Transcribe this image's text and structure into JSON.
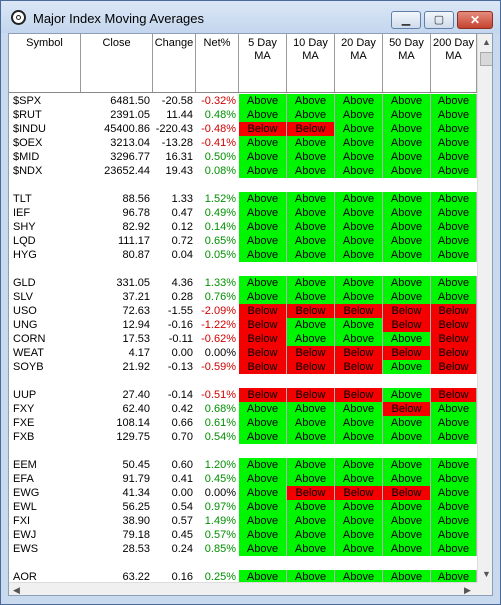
{
  "window": {
    "title": "Major Index Moving Averages"
  },
  "columns": {
    "symbol": "Symbol",
    "close": "Close",
    "change": "Change",
    "netpct": "Net%",
    "ma5": "5 Day MA",
    "ma10": "10 Day MA",
    "ma20": "20 Day MA",
    "ma50": "50 Day MA",
    "ma200": "200 Day MA"
  },
  "colors": {
    "above": "#00f500",
    "below": "#f50000",
    "positive": "#009000",
    "negative": "#d00000"
  },
  "rows": [
    {
      "symbol": "$SPX",
      "close": "6481.50",
      "change": "-20.58",
      "pct": "-0.32%",
      "ma": [
        "Above",
        "Above",
        "Above",
        "Above",
        "Above"
      ]
    },
    {
      "symbol": "$RUT",
      "close": "2391.05",
      "change": "11.44",
      "pct": "0.48%",
      "ma": [
        "Above",
        "Above",
        "Above",
        "Above",
        "Above"
      ]
    },
    {
      "symbol": "$INDU",
      "close": "45400.86",
      "change": "-220.43",
      "pct": "-0.48%",
      "ma": [
        "Below",
        "Below",
        "Above",
        "Above",
        "Above"
      ]
    },
    {
      "symbol": "$OEX",
      "close": "3213.04",
      "change": "-13.28",
      "pct": "-0.41%",
      "ma": [
        "Above",
        "Above",
        "Above",
        "Above",
        "Above"
      ]
    },
    {
      "symbol": "$MID",
      "close": "3296.77",
      "change": "16.31",
      "pct": "0.50%",
      "ma": [
        "Above",
        "Above",
        "Above",
        "Above",
        "Above"
      ]
    },
    {
      "symbol": "$NDX",
      "close": "23652.44",
      "change": "19.43",
      "pct": "0.08%",
      "ma": [
        "Above",
        "Above",
        "Above",
        "Above",
        "Above"
      ]
    },
    null,
    {
      "symbol": "TLT",
      "close": "88.56",
      "change": "1.33",
      "pct": "1.52%",
      "ma": [
        "Above",
        "Above",
        "Above",
        "Above",
        "Above"
      ]
    },
    {
      "symbol": "IEF",
      "close": "96.78",
      "change": "0.47",
      "pct": "0.49%",
      "ma": [
        "Above",
        "Above",
        "Above",
        "Above",
        "Above"
      ]
    },
    {
      "symbol": "SHY",
      "close": "82.92",
      "change": "0.12",
      "pct": "0.14%",
      "ma": [
        "Above",
        "Above",
        "Above",
        "Above",
        "Above"
      ]
    },
    {
      "symbol": "LQD",
      "close": "111.17",
      "change": "0.72",
      "pct": "0.65%",
      "ma": [
        "Above",
        "Above",
        "Above",
        "Above",
        "Above"
      ]
    },
    {
      "symbol": "HYG",
      "close": "80.87",
      "change": "0.04",
      "pct": "0.05%",
      "ma": [
        "Above",
        "Above",
        "Above",
        "Above",
        "Above"
      ]
    },
    null,
    {
      "symbol": "GLD",
      "close": "331.05",
      "change": "4.36",
      "pct": "1.33%",
      "ma": [
        "Above",
        "Above",
        "Above",
        "Above",
        "Above"
      ]
    },
    {
      "symbol": "SLV",
      "close": "37.21",
      "change": "0.28",
      "pct": "0.76%",
      "ma": [
        "Above",
        "Above",
        "Above",
        "Above",
        "Above"
      ]
    },
    {
      "symbol": "USO",
      "close": "72.63",
      "change": "-1.55",
      "pct": "-2.09%",
      "ma": [
        "Below",
        "Below",
        "Below",
        "Below",
        "Below"
      ]
    },
    {
      "symbol": "UNG",
      "close": "12.94",
      "change": "-0.16",
      "pct": "-1.22%",
      "ma": [
        "Below",
        "Above",
        "Above",
        "Below",
        "Below"
      ]
    },
    {
      "symbol": "CORN",
      "close": "17.53",
      "change": "-0.11",
      "pct": "-0.62%",
      "ma": [
        "Below",
        "Above",
        "Above",
        "Above",
        "Below"
      ]
    },
    {
      "symbol": "WEAT",
      "close": "4.17",
      "change": "0.00",
      "pct": "0.00%",
      "ma": [
        "Below",
        "Below",
        "Below",
        "Below",
        "Below"
      ]
    },
    {
      "symbol": "SOYB",
      "close": "21.92",
      "change": "-0.13",
      "pct": "-0.59%",
      "ma": [
        "Below",
        "Below",
        "Below",
        "Above",
        "Below"
      ]
    },
    null,
    {
      "symbol": "UUP",
      "close": "27.40",
      "change": "-0.14",
      "pct": "-0.51%",
      "ma": [
        "Below",
        "Below",
        "Below",
        "Above",
        "Below"
      ]
    },
    {
      "symbol": "FXY",
      "close": "62.40",
      "change": "0.42",
      "pct": "0.68%",
      "ma": [
        "Above",
        "Above",
        "Above",
        "Below",
        "Above"
      ]
    },
    {
      "symbol": "FXE",
      "close": "108.14",
      "change": "0.66",
      "pct": "0.61%",
      "ma": [
        "Above",
        "Above",
        "Above",
        "Above",
        "Above"
      ]
    },
    {
      "symbol": "FXB",
      "close": "129.75",
      "change": "0.70",
      "pct": "0.54%",
      "ma": [
        "Above",
        "Above",
        "Above",
        "Above",
        "Above"
      ]
    },
    null,
    {
      "symbol": "EEM",
      "close": "50.45",
      "change": "0.60",
      "pct": "1.20%",
      "ma": [
        "Above",
        "Above",
        "Above",
        "Above",
        "Above"
      ]
    },
    {
      "symbol": "EFA",
      "close": "91.79",
      "change": "0.41",
      "pct": "0.45%",
      "ma": [
        "Above",
        "Above",
        "Above",
        "Above",
        "Above"
      ]
    },
    {
      "symbol": "EWG",
      "close": "41.34",
      "change": "0.00",
      "pct": "0.00%",
      "ma": [
        "Above",
        "Below",
        "Below",
        "Below",
        "Above"
      ]
    },
    {
      "symbol": "EWL",
      "close": "56.25",
      "change": "0.54",
      "pct": "0.97%",
      "ma": [
        "Above",
        "Above",
        "Above",
        "Above",
        "Above"
      ]
    },
    {
      "symbol": "FXI",
      "close": "38.90",
      "change": "0.57",
      "pct": "1.49%",
      "ma": [
        "Above",
        "Above",
        "Above",
        "Above",
        "Above"
      ]
    },
    {
      "symbol": "EWJ",
      "close": "79.18",
      "change": "0.45",
      "pct": "0.57%",
      "ma": [
        "Above",
        "Above",
        "Above",
        "Above",
        "Above"
      ]
    },
    {
      "symbol": "EWS",
      "close": "28.53",
      "change": "0.24",
      "pct": "0.85%",
      "ma": [
        "Above",
        "Above",
        "Above",
        "Above",
        "Above"
      ]
    },
    null,
    {
      "symbol": "AOR",
      "close": "63.22",
      "change": "0.16",
      "pct": "0.25%",
      "ma": [
        "Above",
        "Above",
        "Above",
        "Above",
        "Above"
      ]
    }
  ]
}
